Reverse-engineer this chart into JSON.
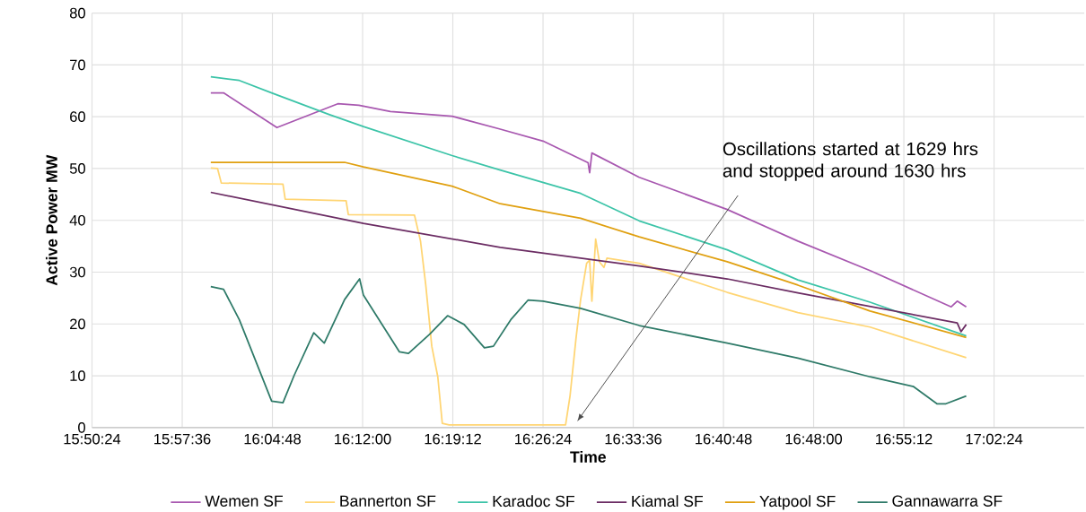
{
  "chart_data": {
    "type": "line",
    "xlabel": "Time",
    "ylabel": "Active Power MW",
    "xlim": [
      15.84,
      17.16
    ],
    "ylim": [
      0,
      80
    ],
    "xticks": [
      {
        "value": 15.84,
        "label": "15:50:24"
      },
      {
        "value": 15.96,
        "label": "15:57:36"
      },
      {
        "value": 16.08,
        "label": "16:04:48"
      },
      {
        "value": 16.2,
        "label": "16:12:00"
      },
      {
        "value": 16.32,
        "label": "16:19:12"
      },
      {
        "value": 16.44,
        "label": "16:26:24"
      },
      {
        "value": 16.56,
        "label": "16:33:36"
      },
      {
        "value": 16.68,
        "label": "16:40:48"
      },
      {
        "value": 16.8,
        "label": "16:48:00"
      },
      {
        "value": 16.92,
        "label": "16:55:12"
      },
      {
        "value": 17.04,
        "label": "17:02:24"
      }
    ],
    "yticks": [
      0,
      10,
      20,
      30,
      40,
      50,
      60,
      70,
      80
    ],
    "grid": true,
    "legend": "bottom",
    "annotations": [
      "Oscillations started at 1629 hrs and stopped around 1630 hrs"
    ],
    "series": [
      {
        "name": "Wemen SF",
        "color": "#a858b0",
        "x": [
          15.998,
          16.015,
          16.086,
          16.167,
          16.195,
          16.237,
          16.319,
          16.383,
          16.44,
          16.5,
          16.502,
          16.505,
          16.568,
          16.685,
          16.779,
          16.875,
          16.983,
          16.991,
          17.003
        ],
        "values": [
          64.6,
          64.6,
          57.9,
          62.5,
          62.2,
          61,
          60.1,
          57.6,
          55.3,
          51.1,
          49.2,
          53,
          48.3,
          42.1,
          36,
          30.3,
          23.3,
          24.4,
          23.3
        ]
      },
      {
        "name": "Bannerton SF",
        "color": "#ffd573",
        "x": [
          15.998,
          16.007,
          16.012,
          16.094,
          16.097,
          16.178,
          16.181,
          16.269,
          16.277,
          16.284,
          16.292,
          16.3,
          16.306,
          16.315,
          16.47,
          16.476,
          16.484,
          16.49,
          16.498,
          16.502,
          16.505,
          16.51,
          16.515,
          16.521,
          16.525,
          16.568,
          16.685,
          16.779,
          16.875,
          17.003
        ],
        "values": [
          50.1,
          50,
          47.2,
          47,
          44.1,
          43.8,
          41.1,
          41,
          36,
          27.5,
          15.7,
          9.8,
          0.8,
          0.5,
          0.5,
          6.2,
          17.4,
          24.7,
          31.7,
          32.3,
          24.4,
          36.4,
          32,
          30.9,
          32.7,
          31.7,
          26.1,
          22.2,
          19.4,
          13.5
        ]
      },
      {
        "name": "Karadoc SF",
        "color": "#3cc4a8",
        "x": [
          15.998,
          16.036,
          16.079,
          16.156,
          16.201,
          16.319,
          16.383,
          16.49,
          16.568,
          16.685,
          16.779,
          16.875,
          17.003
        ],
        "values": [
          67.7,
          67,
          64.6,
          60.4,
          58.1,
          52.5,
          49.7,
          45.2,
          39.9,
          34.3,
          28.5,
          24.2,
          17.7
        ]
      },
      {
        "name": "Kiamal SF",
        "color": "#6b2c63",
        "x": [
          15.998,
          16.201,
          16.383,
          16.568,
          16.685,
          16.779,
          16.991,
          16.996,
          17.003
        ],
        "values": [
          45.4,
          39.4,
          34.8,
          31.2,
          28.7,
          26,
          20.2,
          18.5,
          19.9
        ]
      },
      {
        "name": "Yatpool SF",
        "color": "#e0a010",
        "x": [
          15.998,
          16.176,
          16.201,
          16.319,
          16.383,
          16.49,
          16.568,
          16.685,
          16.779,
          16.875,
          17.003
        ],
        "values": [
          51.2,
          51.2,
          50.3,
          46.6,
          43.2,
          40.4,
          36.8,
          32,
          27.5,
          22.5,
          17.4
        ]
      },
      {
        "name": "Gannawarra SF",
        "color": "#2e7a68",
        "x": [
          15.998,
          16.015,
          16.036,
          16.079,
          16.094,
          16.109,
          16.135,
          16.149,
          16.176,
          16.196,
          16.201,
          16.249,
          16.261,
          16.289,
          16.313,
          16.335,
          16.362,
          16.374,
          16.397,
          16.42,
          16.44,
          16.49,
          16.568,
          16.685,
          16.779,
          16.875,
          16.933,
          16.964,
          16.976,
          17.003
        ],
        "values": [
          27.2,
          26.7,
          20.8,
          5.1,
          4.8,
          10.1,
          18.3,
          16.3,
          24.7,
          28.7,
          25.6,
          14.6,
          14.3,
          18,
          21.6,
          19.9,
          15.4,
          15.7,
          20.8,
          24.6,
          24.4,
          23,
          19.7,
          16.3,
          13.4,
          9.8,
          7.9,
          4.6,
          4.6,
          6.1
        ]
      }
    ]
  }
}
